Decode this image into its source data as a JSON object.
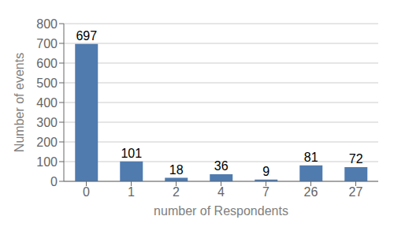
{
  "chart_data": {
    "type": "bar",
    "categories": [
      "0",
      "1",
      "2",
      "4",
      "7",
      "26",
      "27"
    ],
    "values": [
      697,
      101,
      18,
      36,
      9,
      81,
      72
    ],
    "color": "#4f7baf",
    "xlabel": "number of Respondents",
    "ylabel": "Number of events",
    "ylim": [
      0,
      800
    ],
    "yticks": [
      0,
      100,
      200,
      300,
      400,
      500,
      600,
      700,
      800
    ],
    "grid": true,
    "data_labels": true
  }
}
